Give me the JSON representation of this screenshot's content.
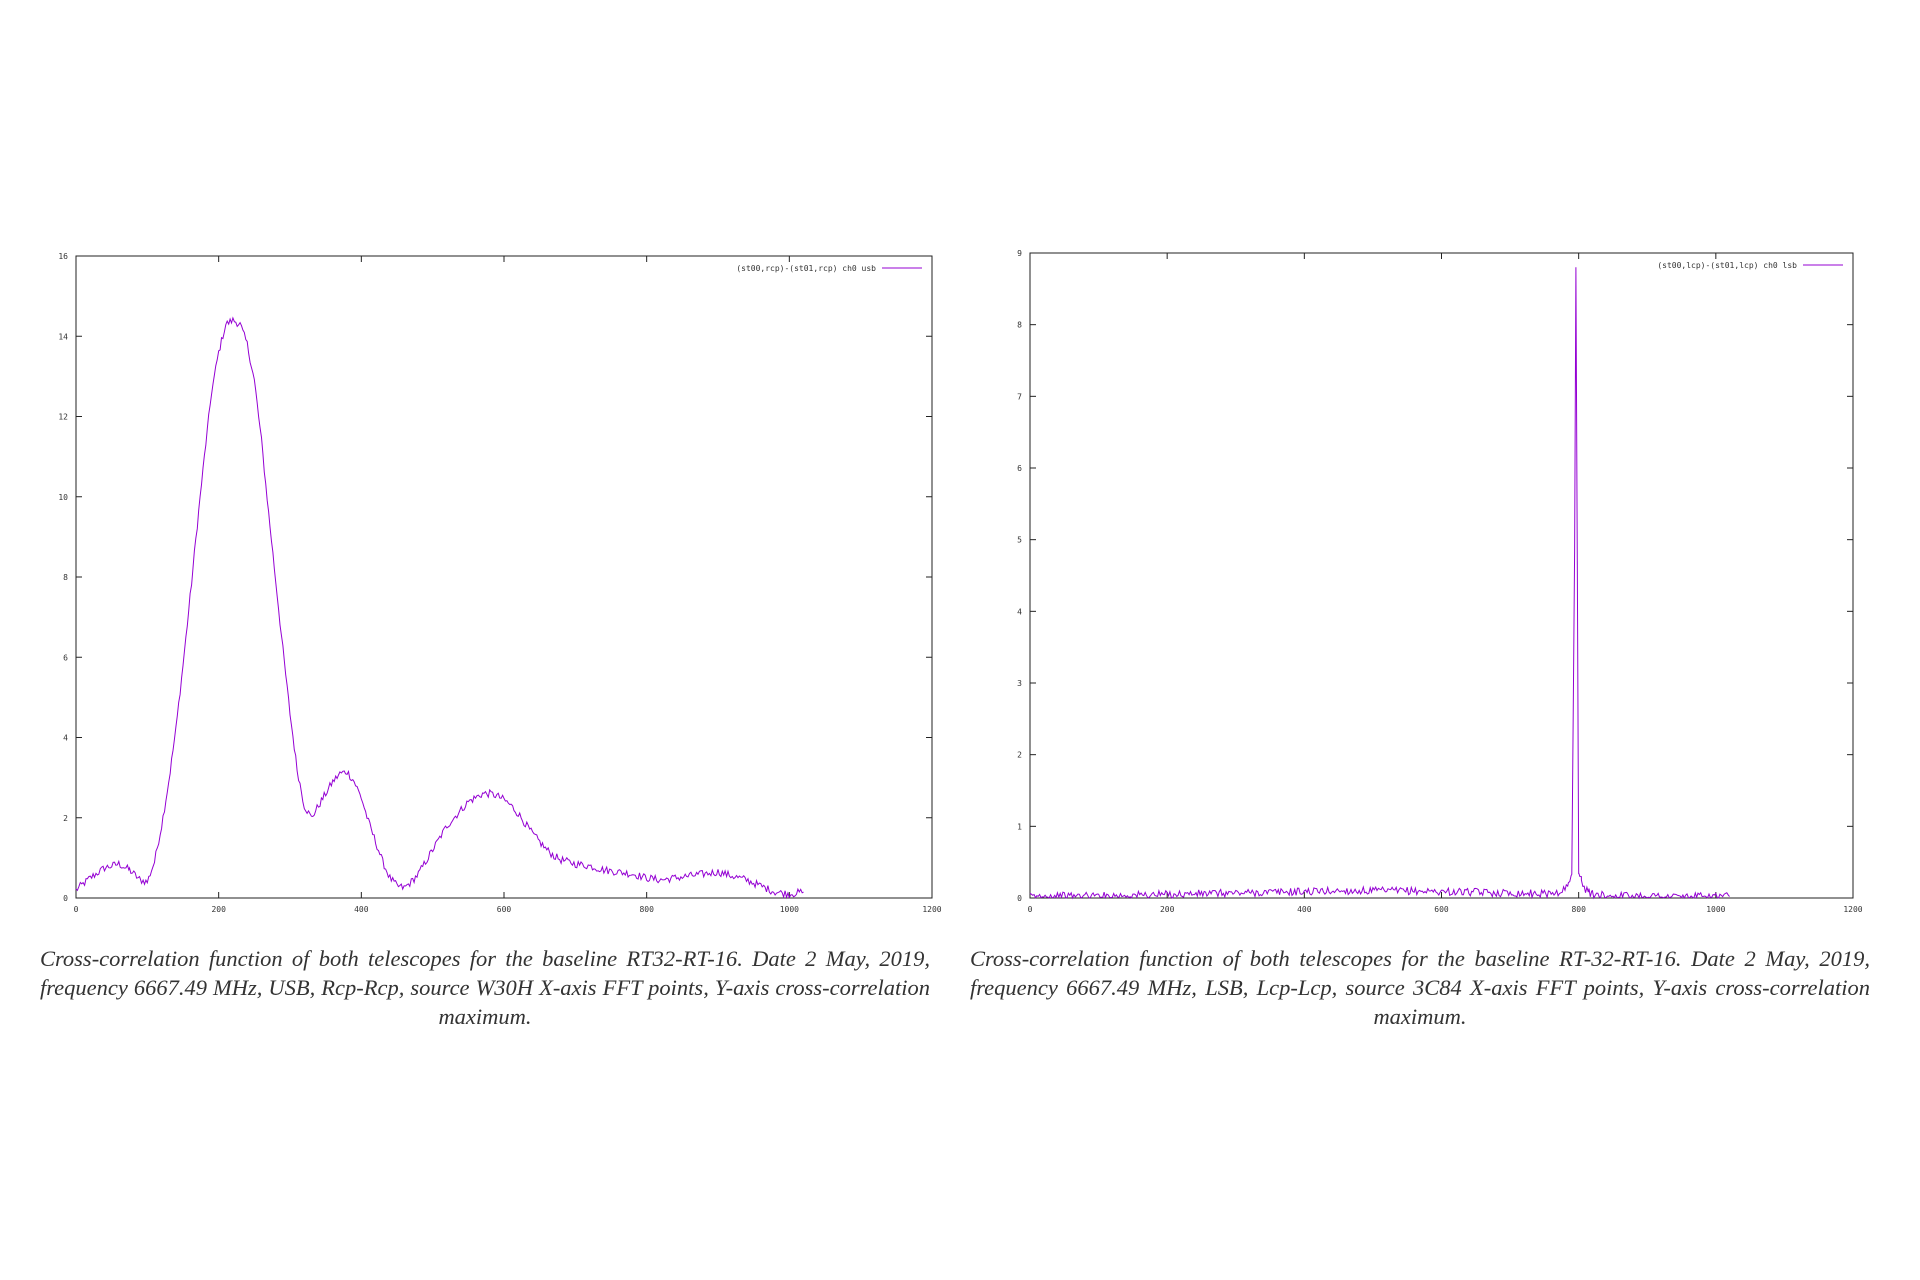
{
  "chart_data": [
    {
      "type": "line",
      "title": "",
      "xlabel": "",
      "ylabel": "",
      "xlim": [
        0,
        1200
      ],
      "ylim": [
        0,
        16
      ],
      "xticks": [
        0,
        200,
        400,
        600,
        800,
        1000,
        1200
      ],
      "yticks": [
        0,
        2,
        4,
        6,
        8,
        10,
        12,
        14,
        16
      ],
      "grid": false,
      "legend": "top-right",
      "caption": "Cross-correlation function of both telescopes for the baseline RT32-RT-16. Date 2 May, 2019, frequency 6667.49 MHz, USB, Rcp-Rcp, source W30H X-axis FFT points, Y-axis cross-correlation maximum.",
      "series": [
        {
          "name": "(st00,rcp)-(st01,rcp) ch0 usb",
          "color": "#9400d3",
          "x": [
            0,
            20,
            40,
            60,
            75,
            90,
            100,
            110,
            120,
            130,
            140,
            150,
            160,
            170,
            180,
            190,
            200,
            210,
            220,
            230,
            240,
            250,
            260,
            270,
            280,
            290,
            300,
            310,
            320,
            330,
            340,
            350,
            360,
            370,
            380,
            390,
            400,
            410,
            420,
            430,
            440,
            450,
            460,
            470,
            480,
            490,
            500,
            510,
            520,
            530,
            540,
            550,
            560,
            570,
            580,
            590,
            600,
            610,
            620,
            630,
            640,
            650,
            660,
            670,
            680,
            700,
            720,
            740,
            760,
            780,
            800,
            820,
            840,
            860,
            880,
            900,
            920,
            940,
            960,
            980,
            1000,
            1020
          ],
          "y": [
            0.2,
            0.5,
            0.75,
            0.85,
            0.7,
            0.45,
            0.4,
            0.9,
            1.8,
            2.9,
            4.2,
            5.8,
            7.5,
            9.3,
            11.0,
            12.6,
            13.6,
            14.3,
            14.4,
            14.3,
            13.8,
            12.9,
            11.4,
            9.6,
            7.9,
            6.2,
            4.6,
            3.2,
            2.3,
            2.0,
            2.3,
            2.6,
            2.9,
            3.1,
            3.15,
            2.9,
            2.5,
            1.9,
            1.4,
            0.9,
            0.5,
            0.3,
            0.25,
            0.4,
            0.6,
            0.9,
            1.2,
            1.5,
            1.8,
            2.0,
            2.2,
            2.4,
            2.5,
            2.6,
            2.6,
            2.55,
            2.45,
            2.3,
            2.1,
            1.85,
            1.6,
            1.4,
            1.2,
            1.05,
            0.95,
            0.85,
            0.8,
            0.7,
            0.65,
            0.6,
            0.5,
            0.45,
            0.5,
            0.55,
            0.6,
            0.65,
            0.55,
            0.45,
            0.3,
            0.15,
            0.1,
            0.15
          ]
        }
      ]
    },
    {
      "type": "line",
      "title": "",
      "xlabel": "",
      "ylabel": "",
      "xlim": [
        0,
        1200
      ],
      "ylim": [
        0,
        9
      ],
      "xticks": [
        0,
        200,
        400,
        600,
        800,
        1000,
        1200
      ],
      "yticks": [
        0,
        1,
        2,
        3,
        4,
        5,
        6,
        7,
        8,
        9
      ],
      "grid": false,
      "legend": "top-right",
      "caption": "Cross-correlation function of both telescopes for the baseline RT-32-RT-16. Date 2 May, 2019, frequency 6667.49 MHz, LSB, Lcp-Lcp, source 3C84 X-axis FFT points, Y-axis cross-correlation maximum.",
      "series": [
        {
          "name": "(st00,lcp)-(st01,lcp) ch0 lsb",
          "color": "#9400d3",
          "x": [
            0,
            50,
            100,
            150,
            200,
            250,
            300,
            350,
            400,
            450,
            500,
            550,
            600,
            650,
            700,
            750,
            770,
            780,
            785,
            790,
            794,
            796,
            798,
            800,
            802,
            804,
            806,
            810,
            815,
            820,
            830,
            850,
            900,
            950,
            1000,
            1020
          ],
          "y": [
            0.02,
            0.03,
            0.03,
            0.04,
            0.05,
            0.06,
            0.07,
            0.08,
            0.09,
            0.1,
            0.1,
            0.1,
            0.09,
            0.08,
            0.07,
            0.06,
            0.08,
            0.12,
            0.2,
            0.3,
            4.8,
            8.8,
            4.7,
            0.35,
            0.3,
            0.25,
            0.2,
            0.12,
            0.08,
            0.05,
            0.04,
            0.03,
            0.03,
            0.02,
            0.02,
            0.02
          ]
        }
      ]
    }
  ]
}
